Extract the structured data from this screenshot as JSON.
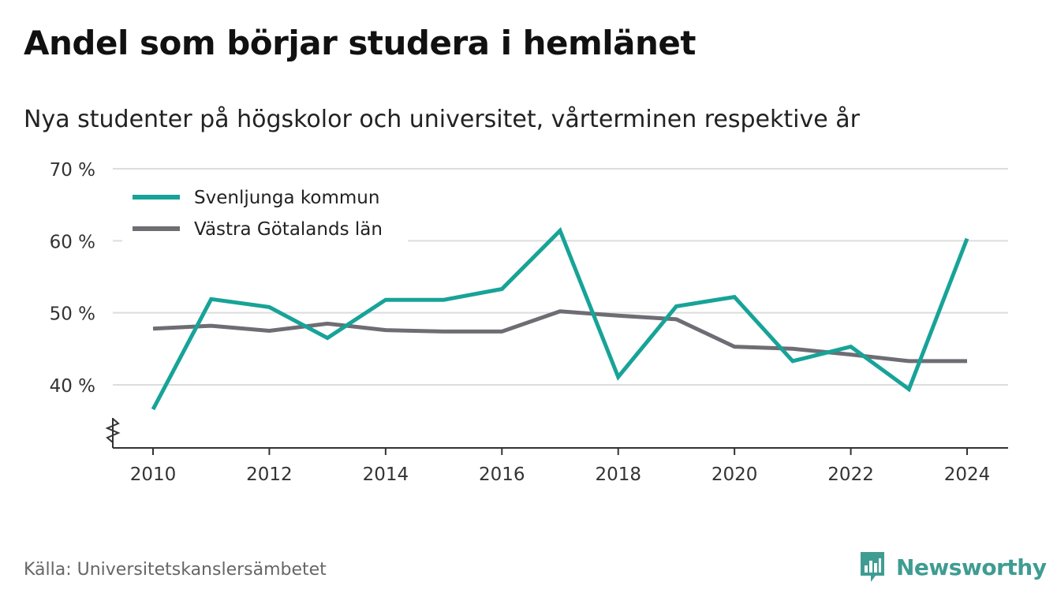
{
  "header": {
    "title": "Andel som börjar studera i hemlänet",
    "subtitle": "Nya studenter på högskolor och universitet, vårterminen respektive år"
  },
  "footer": {
    "source": "Källa: Universitetskanslersämbetet",
    "brand": "Newsworthy"
  },
  "colors": {
    "svenljunga": "#17a398",
    "vastra_gotaland": "#6e6d74",
    "grid": "#dddddd",
    "axis": "#333333",
    "brand": "#3f9c92"
  },
  "chart_data": {
    "type": "line",
    "title": "Andel som börjar studera i hemlänet",
    "subtitle": "Nya studenter på högskolor och universitet, vårterminen respektive år",
    "x": [
      2010,
      2011,
      2012,
      2013,
      2014,
      2015,
      2016,
      2017,
      2018,
      2019,
      2020,
      2021,
      2022,
      2023,
      2024
    ],
    "series": [
      {
        "name": "Svenljunga kommun",
        "color": "#17a398",
        "values": [
          36.6,
          51.9,
          50.8,
          46.5,
          51.8,
          51.8,
          53.3,
          61.4,
          41.1,
          50.9,
          52.2,
          43.3,
          45.3,
          39.4,
          60.3
        ]
      },
      {
        "name": "Västra Götalands län",
        "color": "#6e6d74",
        "values": [
          47.8,
          48.2,
          47.5,
          48.5,
          47.6,
          47.4,
          47.4,
          50.2,
          49.6,
          49.1,
          45.3,
          45.0,
          44.2,
          43.3,
          43.3
        ]
      }
    ],
    "ylim": [
      31,
      70
    ],
    "yticks": [
      40,
      50,
      60,
      70
    ],
    "ytick_labels": [
      "40 %",
      "50 %",
      "60 %",
      "70 %"
    ],
    "xticks": [
      2010,
      2012,
      2014,
      2016,
      2018,
      2020,
      2022,
      2024
    ],
    "xtick_labels": [
      "2010",
      "2012",
      "2014",
      "2016",
      "2018",
      "2020",
      "2022",
      "2024"
    ],
    "xlabel": "",
    "ylabel": "",
    "grid": true,
    "legend": "top-left",
    "axis_break": true
  }
}
